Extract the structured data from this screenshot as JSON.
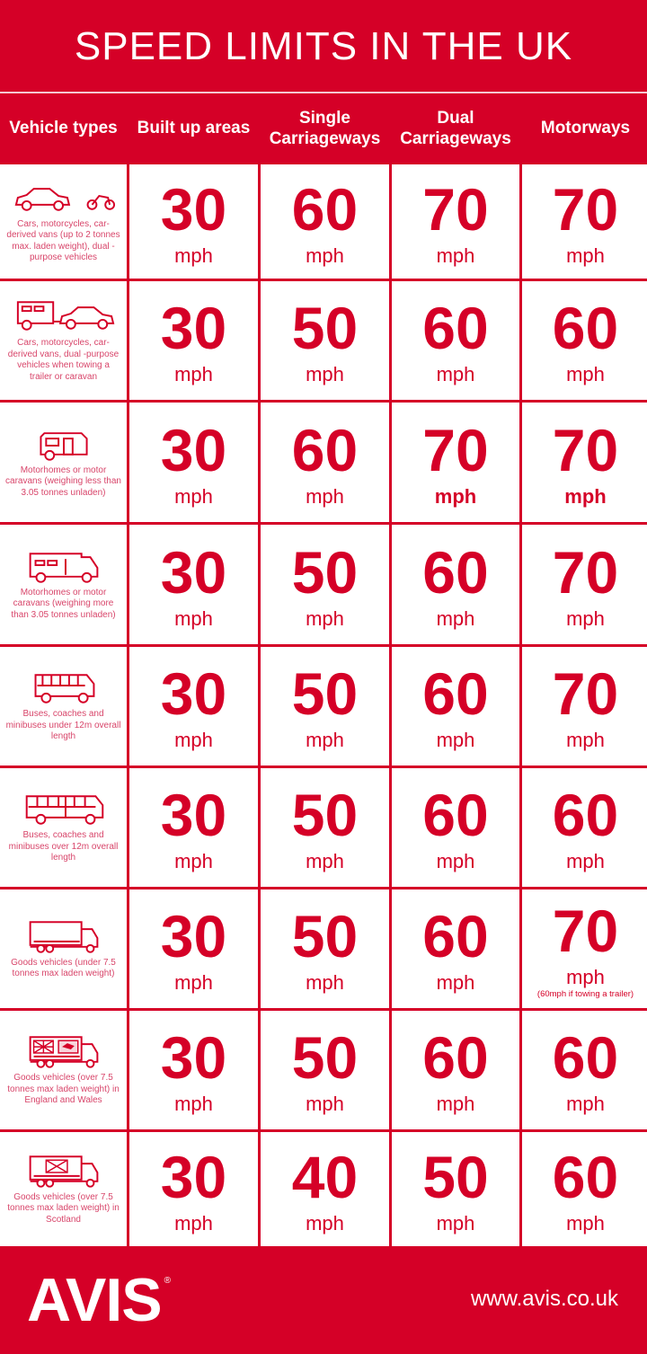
{
  "title": "SPEED LIMITS IN THE UK",
  "colors": {
    "brand_red": "#d50027",
    "text_pink": "#d8456a",
    "white": "#ffffff"
  },
  "headers": [
    "Vehicle types",
    "Built up areas",
    "Single Carriageways",
    "Dual Carriageways",
    "Motorways"
  ],
  "unit": "mph",
  "rows": [
    {
      "icon": "car-and-motorcycle",
      "desc": "Cars, motorcycles, car-derived vans (up to 2 tonnes max. laden weight), dual -purpose vehicles",
      "limits": [
        "30",
        "60",
        "70",
        "70"
      ]
    },
    {
      "icon": "car-towing-caravan",
      "desc": "Cars, motorcycles, car-derived vans, dual -purpose vehicles when towing a trailer or caravan",
      "limits": [
        "30",
        "50",
        "60",
        "60"
      ]
    },
    {
      "icon": "small-motorhome",
      "desc": "Motorhomes or motor caravans (weighing less than 3.05 tonnes unladen)",
      "limits": [
        "30",
        "60",
        "70",
        "70"
      ]
    },
    {
      "icon": "large-motorhome",
      "desc": "Motorhomes or motor caravans (weighing more than 3.05 tonnes unladen)",
      "limits": [
        "30",
        "50",
        "60",
        "70"
      ]
    },
    {
      "icon": "minibus",
      "desc": "Buses, coaches and minibuses under 12m overall length",
      "limits": [
        "30",
        "50",
        "60",
        "70"
      ]
    },
    {
      "icon": "coach",
      "desc": "Buses, coaches and minibuses over 12m overall length",
      "limits": [
        "30",
        "50",
        "60",
        "60"
      ]
    },
    {
      "icon": "lorry",
      "desc": "Goods vehicles (under 7.5 tonnes max laden weight)",
      "limits": [
        "30",
        "50",
        "60",
        "70"
      ],
      "note": "(60mph if towing a trailer)"
    },
    {
      "icon": "lorry-england-wales-flags",
      "desc": "Goods vehicles (over 7.5 tonnes max laden weight) in England and Wales",
      "limits": [
        "30",
        "50",
        "60",
        "60"
      ]
    },
    {
      "icon": "lorry-scotland-flag",
      "desc": "Goods vehicles (over 7.5 tonnes max laden weight) in Scotland",
      "limits": [
        "30",
        "40",
        "50",
        "60"
      ]
    }
  ],
  "footer": {
    "logo": "AVIS",
    "registered": "®",
    "url": "www.avis.co.uk"
  }
}
